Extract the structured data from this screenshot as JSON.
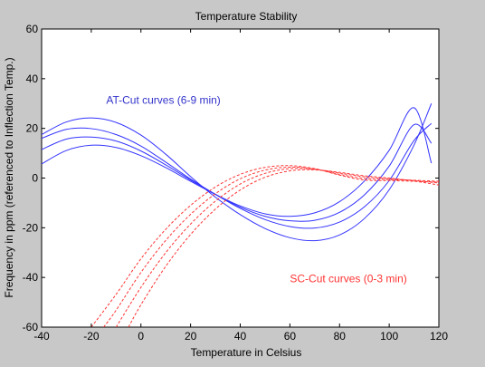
{
  "chart_data": {
    "type": "line",
    "title": "Temperature Stability",
    "xlabel": "Temperature in Celsius",
    "ylabel": "Frequency in ppm (referenced to Inflection Temp.)",
    "xlim": [
      -40,
      120
    ],
    "ylim": [
      -60,
      60
    ],
    "xticks": [
      -40,
      -20,
      0,
      20,
      40,
      60,
      80,
      100,
      120
    ],
    "yticks": [
      -60,
      -40,
      -20,
      0,
      20,
      40,
      60
    ],
    "grid": false,
    "annotations": [
      {
        "text": "AT-Cut curves (6-9 min)",
        "x": -14,
        "y": 30,
        "color": "#3333cc"
      },
      {
        "text": "SC-Cut curves (0-3 min)",
        "x": 60,
        "y": -42,
        "color": "#ff3333"
      }
    ],
    "series": [
      {
        "group": "AT-Cut curves (6-9 min)",
        "style": "solid",
        "color": "#3333ff",
        "x": [
          -40,
          -30,
          -20,
          -10,
          0,
          10,
          20,
          30,
          40,
          50,
          60,
          70,
          80,
          90,
          100,
          110,
          117
        ],
        "y": [
          5.7,
          11.1,
          13.2,
          12.3,
          9.0,
          4.2,
          -1.3,
          -6.6,
          -11.2,
          -14.4,
          -15.4,
          -14.0,
          -9.5,
          -1.2,
          11.2,
          28.3,
          6.0
        ]
      },
      {
        "group": "AT-Cut curves (6-9 min)",
        "style": "solid",
        "color": "#3333ff",
        "x": [
          -40,
          -30,
          -20,
          -10,
          0,
          10,
          20,
          30,
          40,
          50,
          60,
          70,
          80,
          90,
          100,
          110,
          117
        ],
        "y": [
          11.5,
          15.7,
          16.5,
          14.9,
          10.9,
          5.3,
          -0.8,
          -6.5,
          -11.7,
          -15.4,
          -17.2,
          -17.0,
          -13.8,
          -6.8,
          4.8,
          21.5,
          14.0
        ]
      },
      {
        "group": "AT-Cut curves (6-9 min)",
        "style": "solid",
        "color": "#3333ff",
        "x": [
          -40,
          -30,
          -20,
          -10,
          0,
          10,
          20,
          30,
          40,
          50,
          60,
          70,
          80,
          90,
          100,
          110,
          117
        ],
        "y": [
          16.0,
          19.6,
          19.9,
          17.5,
          12.9,
          6.4,
          -0.4,
          -6.6,
          -12.2,
          -16.7,
          -19.5,
          -20.1,
          -17.7,
          -11.6,
          -1.0,
          15.1,
          22.0
        ]
      },
      {
        "group": "AT-Cut curves (6-9 min)",
        "style": "solid",
        "color": "#3333ff",
        "x": [
          -40,
          -30,
          -20,
          -10,
          0,
          10,
          20,
          30,
          40,
          50,
          60,
          70,
          80,
          90,
          100,
          110,
          117
        ],
        "y": [
          17.5,
          22.6,
          24.2,
          22.4,
          17.3,
          9.6,
          0.6,
          -7.7,
          -14.7,
          -20.3,
          -24.0,
          -25.2,
          -22.9,
          -16.3,
          -4.7,
          13.3,
          30.0
        ]
      },
      {
        "group": "SC-Cut curves (0-3 min)",
        "style": "dashed",
        "color": "#ff3333",
        "x": [
          -20,
          -10,
          0,
          10,
          20,
          30,
          40,
          50,
          60,
          70,
          80,
          90,
          100,
          110,
          120
        ],
        "y": [
          -60,
          -46.8,
          -32.5,
          -20.6,
          -11.0,
          -3.6,
          1.5,
          4.3,
          5.0,
          3.8,
          1.2,
          -0.8,
          -1.0,
          -1.3,
          -1.6
        ]
      },
      {
        "group": "SC-Cut curves (0-3 min)",
        "style": "dashed",
        "color": "#ff3333",
        "x": [
          -15,
          -10,
          0,
          10,
          20,
          30,
          40,
          50,
          60,
          70,
          80,
          90,
          100,
          110,
          120
        ],
        "y": [
          -60,
          -53.2,
          -38.0,
          -25.1,
          -14.6,
          -6.3,
          -0.3,
          3.2,
          4.4,
          3.6,
          1.5,
          -0.2,
          -0.6,
          -0.9,
          -1.3
        ]
      },
      {
        "group": "SC-Cut curves (0-3 min)",
        "style": "dashed",
        "color": "#ff3333",
        "x": [
          -10,
          0,
          10,
          20,
          30,
          40,
          50,
          60,
          70,
          80,
          90,
          100,
          110,
          120
        ],
        "y": [
          -60,
          -44.0,
          -30.0,
          -18.5,
          -9.3,
          -2.4,
          1.9,
          3.8,
          3.5,
          2.0,
          0.5,
          -0.3,
          -1.0,
          -2.0
        ]
      },
      {
        "group": "SC-Cut curves (0-3 min)",
        "style": "dashed",
        "color": "#ff3333",
        "x": [
          -5,
          0,
          10,
          20,
          30,
          40,
          50,
          60,
          70,
          80,
          90,
          100,
          110,
          120
        ],
        "y": [
          -60,
          -51.0,
          -35.5,
          -22.7,
          -12.5,
          -4.8,
          0.3,
          2.9,
          3.3,
          2.3,
          0.9,
          0.0,
          -1.2,
          -2.8
        ]
      }
    ]
  },
  "style": {
    "background": "#c8c8c8",
    "axes_background": "#ffffff",
    "axis_color": "#000000"
  }
}
